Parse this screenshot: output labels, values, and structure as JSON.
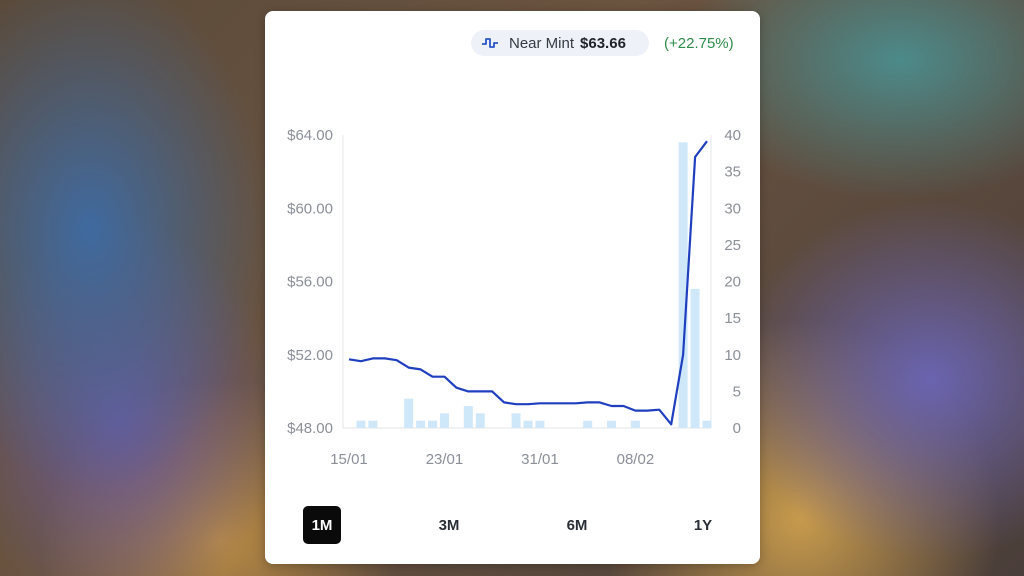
{
  "header": {
    "condition": "Near Mint",
    "price": "$63.66",
    "change": "(+22.75%)",
    "icon": "chart-line-icon"
  },
  "colors": {
    "line": "#1f3fbf",
    "bars": "#cfe8f9",
    "change_positive": "#2e8b4a",
    "active_range_bg": "#0a0a0a"
  },
  "range_buttons": [
    {
      "label": "1M",
      "active": true
    },
    {
      "label": "3M",
      "active": false
    },
    {
      "label": "6M",
      "active": false
    },
    {
      "label": "1Y",
      "active": false
    }
  ],
  "chart_data": {
    "type": "line",
    "title": "",
    "grid": false,
    "x_tick_labels": [
      "15/01",
      "23/01",
      "31/01",
      "08/02"
    ],
    "y_left": {
      "ticks": [
        "$48.00",
        "$52.00",
        "$56.00",
        "$60.00",
        "$64.00"
      ],
      "range": [
        48,
        64
      ]
    },
    "y_right": {
      "ticks": [
        "0",
        "5",
        "10",
        "15",
        "20",
        "25",
        "30",
        "35",
        "40"
      ],
      "range": [
        0,
        40
      ]
    },
    "series": [
      {
        "kind": "line",
        "axis": "left",
        "values": [
          51.75,
          51.65,
          51.8,
          51.8,
          51.7,
          51.3,
          51.2,
          50.8,
          50.8,
          50.2,
          50.0,
          50.0,
          50.0,
          49.4,
          49.3,
          49.3,
          49.35,
          49.35,
          49.35,
          49.35,
          49.4,
          49.4,
          49.2,
          49.2,
          48.95,
          48.95,
          49.0,
          48.2,
          52.0,
          62.8,
          63.66
        ]
      },
      {
        "kind": "bar",
        "axis": "right",
        "values": [
          0,
          1,
          1,
          0,
          0,
          4,
          1,
          1,
          2,
          0,
          3,
          2,
          0,
          0,
          2,
          1,
          1,
          0,
          0,
          0,
          1,
          0,
          1,
          0,
          1,
          0,
          0,
          0,
          39,
          19,
          1
        ]
      }
    ]
  }
}
